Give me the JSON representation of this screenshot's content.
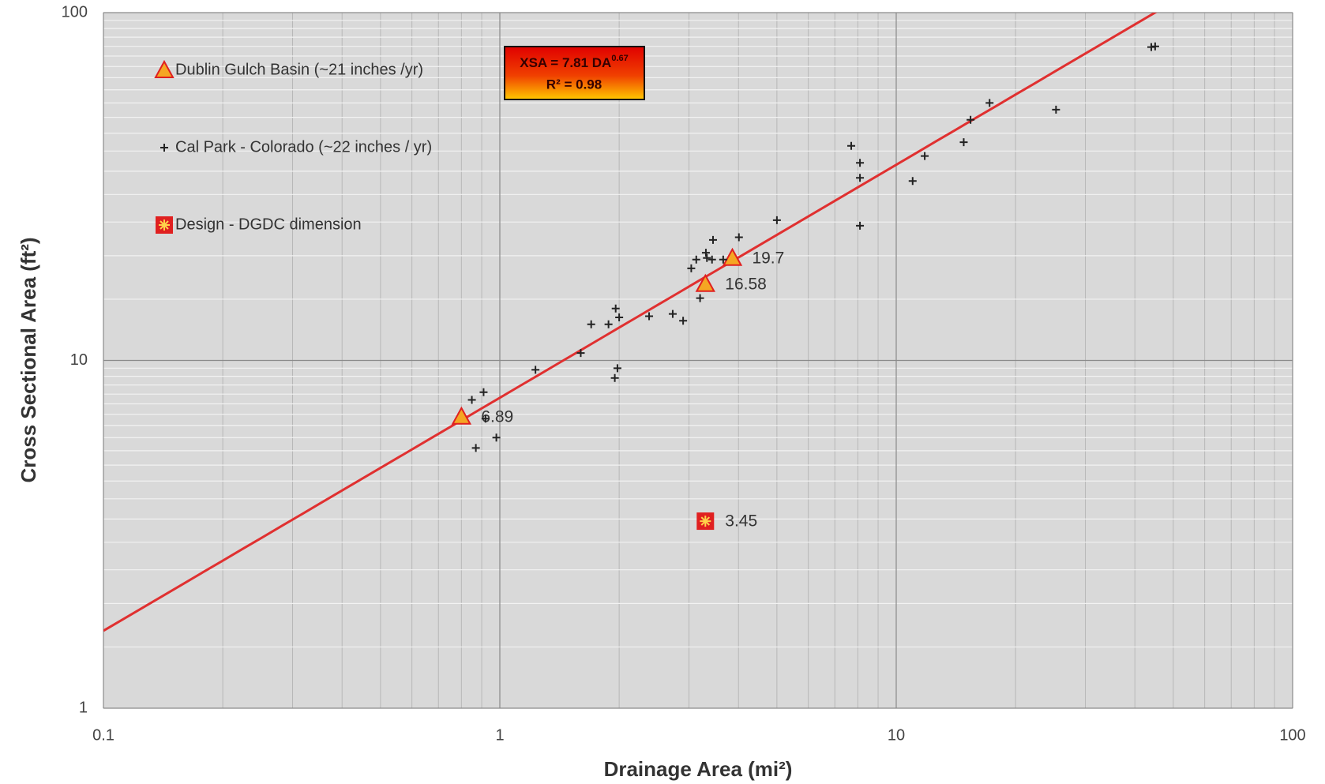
{
  "chart_data": {
    "type": "scatter",
    "x_label": "Drainage Area (mi²)",
    "y_label": "Cross Sectional Area (ft²)",
    "log_x": true,
    "log_y": true,
    "grid": true,
    "minor_grid": true,
    "xlim": [
      0.1,
      100
    ],
    "ylim": [
      1,
      100
    ],
    "xticks": [
      0.1,
      1,
      10,
      100
    ],
    "yticks": [
      1,
      10,
      100
    ],
    "legend": "upper left",
    "series": [
      {
        "name": "Dublin Gulch Basin  (~21 inches /yr)",
        "marker": "triangle",
        "color": "#f5a623",
        "x": [
          0.8,
          3.3,
          3.86
        ],
        "values": [
          6.89,
          16.58,
          19.7
        ],
        "data_labels": true
      },
      {
        "name": "Cal Park - Colorado (~22 inches / yr)",
        "marker": "plus",
        "color": "#222222",
        "x": [
          0.85,
          0.91,
          0.92,
          0.87,
          0.98,
          1.23,
          1.6,
          1.7,
          1.88,
          1.96,
          2.0,
          1.98,
          1.95,
          2.38,
          2.73,
          2.9,
          3.04,
          3.13,
          3.2,
          3.31,
          3.33,
          3.43,
          3.45,
          3.66,
          4.01,
          5.0,
          7.7,
          8.1,
          8.1,
          8.1,
          11.0,
          11.8,
          14.8,
          15.4,
          17.2,
          25.3,
          44,
          45
        ],
        "values": [
          7.7,
          8.1,
          6.8,
          5.6,
          6.0,
          9.4,
          10.5,
          12.7,
          12.7,
          14.1,
          13.3,
          9.5,
          8.9,
          13.4,
          13.6,
          13.0,
          18.4,
          19.5,
          15.1,
          20.4,
          19.7,
          19.5,
          22.2,
          19.5,
          22.6,
          25.3,
          41.4,
          37.0,
          33.5,
          24.4,
          32.8,
          38.7,
          42.4,
          49.2,
          55,
          52.6,
          79.6,
          80
        ]
      },
      {
        "name": "Design - DGDC dimension",
        "marker": "square",
        "color": "#e02020",
        "x": [
          3.3
        ],
        "values": [
          3.45
        ],
        "data_labels": true
      }
    ],
    "trendline": {
      "lhs": "XSA =",
      "coefficient": 7.81,
      "variable": "DA",
      "exponent": 0.67,
      "r2_text": "R² = 0.98",
      "color": "#e03030"
    }
  }
}
